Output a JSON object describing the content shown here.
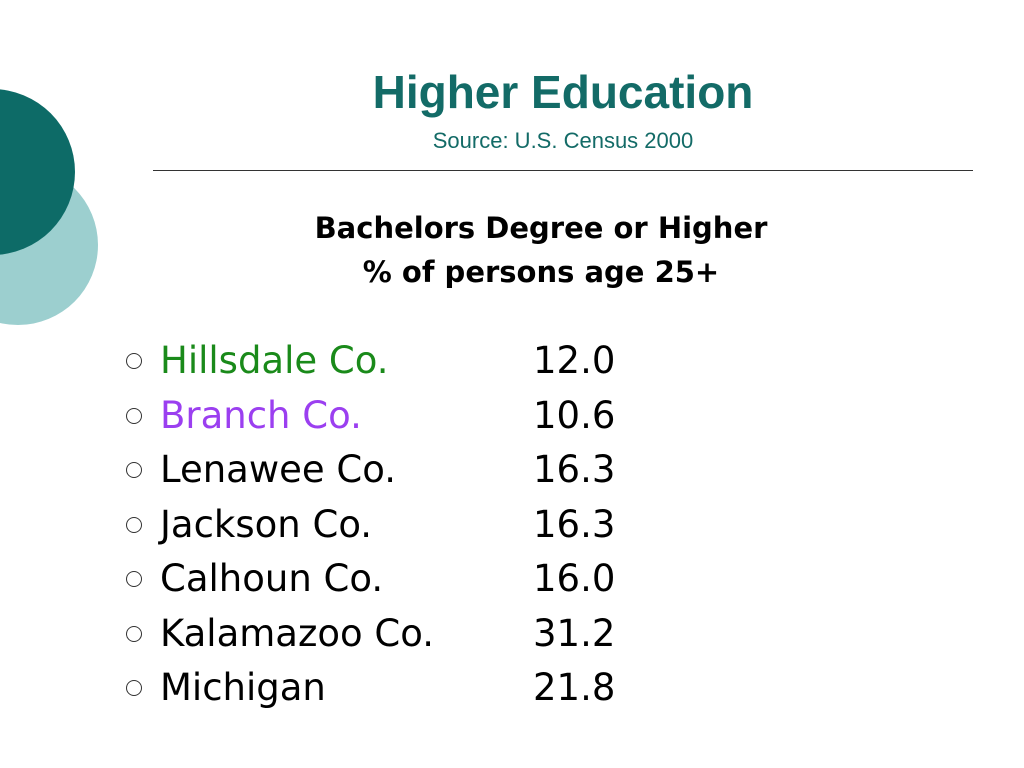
{
  "header": {
    "title": "Higher Education",
    "subtitle": "Source:  U.S. Census 2000"
  },
  "heading": [
    "Bachelors Degree or Higher",
    "% of persons age 25+"
  ],
  "items": [
    {
      "name": "Hillsdale Co.",
      "value": "12.0"
    },
    {
      "name": "Branch Co.",
      "value": "10.6"
    },
    {
      "name": "Lenawee Co.",
      "value": "16.3"
    },
    {
      "name": "Jackson Co.",
      "value": "16.3"
    },
    {
      "name": "Calhoun Co.",
      "value": "16.0"
    },
    {
      "name": "Kalamazoo Co.",
      "value": "31.2"
    },
    {
      "name": "Michigan",
      "value": "21.8"
    }
  ]
}
